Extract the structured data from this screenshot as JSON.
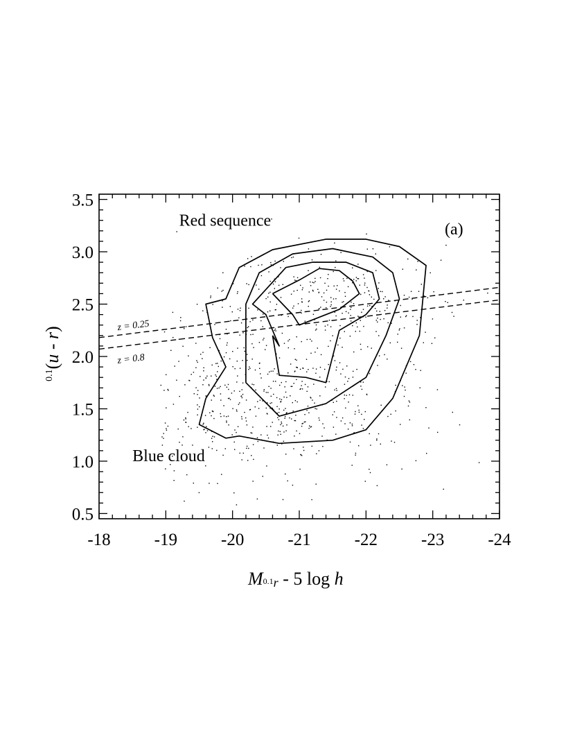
{
  "chart_data": {
    "type": "scatter",
    "panel_label": "(a)",
    "xlabel_parts": {
      "M": "M",
      "sub_sup": "0.1",
      "sub_r": "r",
      "rest": " - 5 log ",
      "h": "h"
    },
    "ylabel_parts": {
      "sup": "0.1",
      "open": "(",
      "u": "u",
      "minus": " - ",
      "r": "r",
      "close": ")"
    },
    "xlim": [
      -18,
      -24
    ],
    "ylim": [
      0.45,
      3.55
    ],
    "x_ticks": [
      -18,
      -19,
      -20,
      -21,
      -22,
      -23,
      -24
    ],
    "x_tick_labels": [
      "-18",
      "-19",
      "-20",
      "-21",
      "-22",
      "-23",
      "-24"
    ],
    "y_ticks": [
      0.5,
      1.0,
      1.5,
      2.0,
      2.5,
      3.0,
      3.5
    ],
    "y_tick_labels": [
      "0.5",
      "1.0",
      "1.5",
      "2.0",
      "2.5",
      "3.0",
      "3.5"
    ],
    "annotations": [
      {
        "text": "Red sequence",
        "x": -19.2,
        "y": 3.25
      },
      {
        "text": "Blue cloud",
        "x": -18.5,
        "y": 1.0
      }
    ],
    "dashed_lines": [
      {
        "label": "z = 0.25",
        "x": [
          -18,
          -24
        ],
        "y": [
          2.18,
          2.66
        ]
      },
      {
        "label": "z = 0.8",
        "x": [
          -18,
          -24
        ],
        "y": [
          2.07,
          2.54
        ]
      }
    ],
    "contours": [
      {
        "level": 1,
        "x": [
          -19.6,
          -19.5,
          -19.9,
          -20.1,
          -20.7,
          -21.5,
          -22.0,
          -22.4,
          -22.8,
          -22.9,
          -22.5,
          -22.0,
          -21.4,
          -20.6,
          -20.1,
          -19.9,
          -19.6,
          -19.7,
          -19.9,
          -19.6
        ],
        "y": [
          1.6,
          1.35,
          1.22,
          1.24,
          1.17,
          1.2,
          1.3,
          1.6,
          2.2,
          2.87,
          3.05,
          3.12,
          3.12,
          3.02,
          2.85,
          2.55,
          2.5,
          2.18,
          1.9,
          1.6
        ]
      },
      {
        "level": 2,
        "x": [
          -20.2,
          -20.7,
          -21.4,
          -22.0,
          -22.3,
          -22.5,
          -22.4,
          -22.1,
          -21.5,
          -20.9,
          -20.4,
          -20.2,
          -20.2
        ],
        "y": [
          1.75,
          1.43,
          1.55,
          1.8,
          2.2,
          2.55,
          2.8,
          2.95,
          3.03,
          2.98,
          2.8,
          2.5,
          1.75
        ]
      },
      {
        "level": 3,
        "x": [
          -20.6,
          -20.7,
          -21.1,
          -21.4,
          -21.6,
          -22.0,
          -22.2,
          -22.1,
          -21.7,
          -21.2,
          -20.8,
          -20.3,
          -20.5,
          -20.7,
          -20.6
        ],
        "y": [
          2.2,
          1.82,
          1.8,
          1.75,
          2.25,
          2.4,
          2.55,
          2.8,
          2.9,
          2.9,
          2.85,
          2.5,
          2.4,
          2.1,
          2.2
        ]
      },
      {
        "level": 4,
        "x": [
          -20.6,
          -20.9,
          -21.0,
          -21.6,
          -21.9,
          -21.8,
          -21.6,
          -21.3,
          -21.0,
          -20.6
        ],
        "y": [
          2.6,
          2.4,
          2.3,
          2.45,
          2.6,
          2.72,
          2.82,
          2.84,
          2.73,
          2.6
        ]
      }
    ],
    "scatter_note_points": {
      "count": 900,
      "color": "#000000"
    },
    "grid": false
  }
}
